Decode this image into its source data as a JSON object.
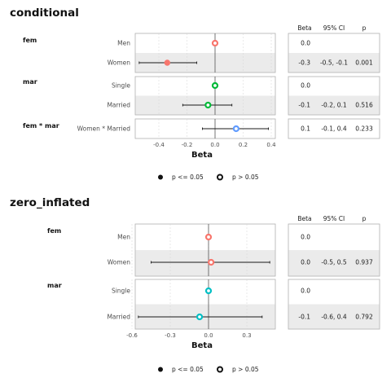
{
  "chart_data": [
    {
      "type": "forest",
      "title": "conditional",
      "xlabel": "Beta",
      "xlim": [
        -0.6,
        0.42
      ],
      "xticks": [
        -0.4,
        -0.2,
        0.0,
        0.2,
        0.4
      ],
      "xtick_labels": [
        "-0.4",
        "-0.2",
        "0.0",
        "0.2",
        "0.4"
      ],
      "table_headers": [
        "Beta",
        "95% CI",
        "p"
      ],
      "groups": [
        {
          "label": "fem",
          "rows": [
            {
              "label": "Men",
              "beta": 0.0,
              "lo": null,
              "hi": null,
              "sig": false,
              "color": "#F8766D",
              "beta_text": "0.0",
              "ci_text": "",
              "p_text": ""
            },
            {
              "label": "Women",
              "beta": -0.34,
              "lo": -0.54,
              "hi": -0.13,
              "sig": true,
              "color": "#F8766D",
              "beta_text": "-0.3",
              "ci_text": "-0.5, -0.1",
              "p_text": "0.001"
            }
          ]
        },
        {
          "label": "mar",
          "rows": [
            {
              "label": "Single",
              "beta": 0.0,
              "lo": null,
              "hi": null,
              "sig": false,
              "color": "#00BA38",
              "beta_text": "0.0",
              "ci_text": "",
              "p_text": ""
            },
            {
              "label": "Married",
              "beta": -0.05,
              "lo": -0.23,
              "hi": 0.12,
              "sig": false,
              "color": "#00BA38",
              "beta_text": "-0.1",
              "ci_text": "-0.2, 0.1",
              "p_text": "0.516"
            }
          ]
        },
        {
          "label": "fem * mar",
          "rows": [
            {
              "label": "Women * Married",
              "beta": 0.15,
              "lo": -0.09,
              "hi": 0.38,
              "sig": false,
              "color": "#619CFF",
              "beta_text": "0.1",
              "ci_text": "-0.1, 0.4",
              "p_text": "0.233"
            }
          ]
        }
      ],
      "legend": [
        "p <= 0.05",
        "p > 0.05"
      ],
      "legend_position": "bottom"
    },
    {
      "type": "forest",
      "title": "zero_inflated",
      "xlabel": "Beta",
      "xlim": [
        -0.62,
        0.5
      ],
      "xticks": [
        -0.6,
        -0.3,
        0.0,
        0.3
      ],
      "xtick_labels": [
        "-0.6",
        "-0.3",
        "0.0",
        "0.3"
      ],
      "table_headers": [
        "Beta",
        "95% CI",
        "p"
      ],
      "groups": [
        {
          "label": "fem",
          "rows": [
            {
              "label": "Men",
              "beta": 0.0,
              "lo": null,
              "hi": null,
              "sig": false,
              "color": "#F8766D",
              "beta_text": "0.0",
              "ci_text": "",
              "p_text": ""
            },
            {
              "label": "Women",
              "beta": 0.02,
              "lo": -0.45,
              "hi": 0.48,
              "sig": false,
              "color": "#F8766D",
              "beta_text": "0.0",
              "ci_text": "-0.5, 0.5",
              "p_text": "0.937"
            }
          ]
        },
        {
          "label": "mar",
          "rows": [
            {
              "label": "Single",
              "beta": 0.0,
              "lo": null,
              "hi": null,
              "sig": false,
              "color": "#00BFC4",
              "beta_text": "0.0",
              "ci_text": "",
              "p_text": ""
            },
            {
              "label": "Married",
              "beta": -0.07,
              "lo": -0.55,
              "hi": 0.42,
              "sig": false,
              "color": "#00BFC4",
              "beta_text": "-0.1",
              "ci_text": "-0.6, 0.4",
              "p_text": "0.792"
            }
          ]
        }
      ],
      "legend": [
        "p <= 0.05",
        "p > 0.05"
      ],
      "legend_position": "bottom"
    }
  ]
}
